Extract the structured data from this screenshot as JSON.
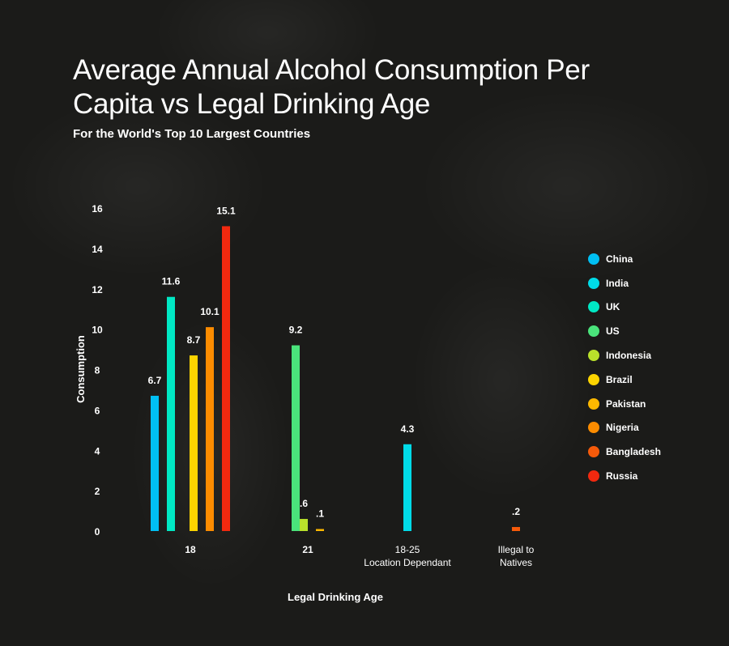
{
  "chart_data": {
    "type": "bar",
    "title": "Average Annual Alcohol Consumption Per Capita vs Legal Drinking Age",
    "subtitle": "For the World's Top 10 Largest Countries",
    "xlabel": "Legal Drinking Age",
    "ylabel": "Consumption",
    "ylim": [
      0,
      16
    ],
    "yticks": [
      0,
      2,
      4,
      6,
      8,
      10,
      12,
      14,
      16
    ],
    "grid": false,
    "legend_position": "right",
    "series_legend": [
      {
        "name": "China",
        "color": "#00bff3"
      },
      {
        "name": "India",
        "color": "#00dbe8"
      },
      {
        "name": "UK",
        "color": "#00e8c4"
      },
      {
        "name": "US",
        "color": "#4ae37b"
      },
      {
        "name": "Indonesia",
        "color": "#b9e12b"
      },
      {
        "name": "Brazil",
        "color": "#fcd400"
      },
      {
        "name": "Pakistan",
        "color": "#fcb800"
      },
      {
        "name": "Nigeria",
        "color": "#fc8c00"
      },
      {
        "name": "Bangladesh",
        "color": "#f55a0a"
      },
      {
        "name": "Russia",
        "color": "#f2290f"
      }
    ],
    "groups": [
      {
        "label_lines": [
          "18"
        ],
        "bars": [
          {
            "country": "China",
            "value": 6.7,
            "label": "6.7"
          },
          {
            "country": "UK",
            "value": 11.6,
            "label": "11.6"
          },
          {
            "country": "Brazil",
            "value": 8.7,
            "label": "8.7"
          },
          {
            "country": "Nigeria",
            "value": 10.1,
            "label": "10.1"
          },
          {
            "country": "Russia",
            "value": 15.1,
            "label": "15.1"
          }
        ]
      },
      {
        "label_lines": [
          "21"
        ],
        "bars": [
          {
            "country": "US",
            "value": 9.2,
            "label": "9.2"
          },
          {
            "country": "Indonesia",
            "value": 0.6,
            "label": ".6"
          },
          {
            "country": "Pakistan",
            "value": 0.1,
            "label": ".1"
          }
        ]
      },
      {
        "label_lines": [
          "18-25",
          "Location Dependant"
        ],
        "bars": [
          {
            "country": "India",
            "value": 4.3,
            "label": "4.3"
          }
        ]
      },
      {
        "label_lines": [
          "Illegal to",
          "Natives"
        ],
        "bars": [
          {
            "country": "Bangladesh",
            "value": 0.2,
            "label": ".2"
          }
        ]
      }
    ]
  }
}
